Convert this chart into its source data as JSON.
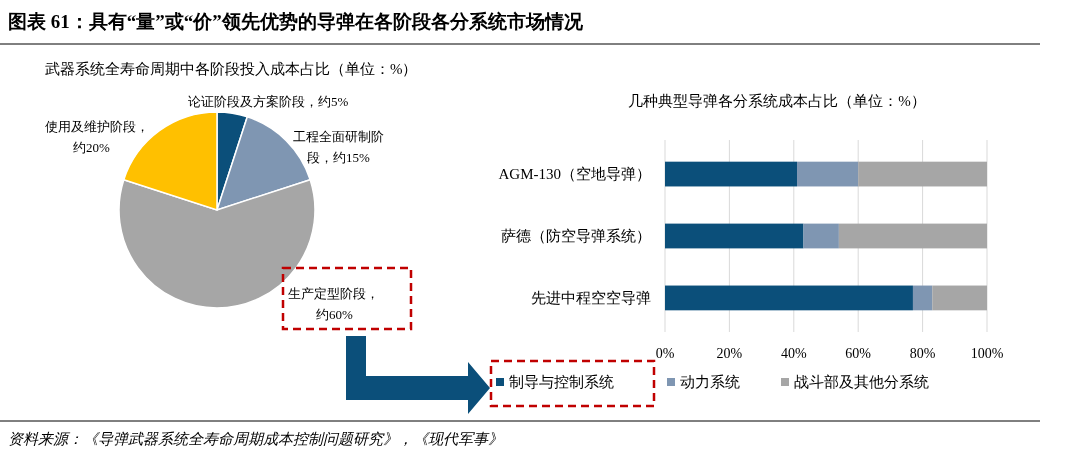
{
  "chart_data": [
    {
      "type": "pie",
      "title": "武器系统全寿命周期中各阶段投入成本占比（单位：%）",
      "categories": [
        "论证阶段及方案阶段，约5%",
        "工程全面研制阶段，约15%",
        "生产定型阶段，约60%",
        "使用及维护阶段，约20%"
      ],
      "values": [
        5,
        15,
        60,
        20
      ],
      "colors": [
        "#0b4f7a",
        "#7f96b2",
        "#a6a6a6",
        "#ffc000"
      ],
      "annotations": [
        "图表 61：具有“量”或“价”领先优势的导弹在各阶段各分系统市场情况",
        "资料来源：《导弹武器系统全寿命周期成本控制问题研究》，《现代军事》"
      ]
    },
    {
      "type": "bar",
      "orientation": "horizontal",
      "stacked": true,
      "title": "几种典型导弹各分系统成本占比（单位：%）",
      "categories": [
        "AGM-130（空地导弹）",
        "萨德（防空导弹系统）",
        "先进中程空空导弹"
      ],
      "series": [
        {
          "name": "制导与控制系统",
          "color": "#0b4f7a",
          "values": [
            41,
            43,
            77
          ]
        },
        {
          "name": "动力系统",
          "color": "#7f96b2",
          "values": [
            19,
            11,
            6
          ]
        },
        {
          "name": "战斗部及其他分系统",
          "color": "#a6a6a6",
          "values": [
            40,
            46,
            17
          ]
        }
      ],
      "xlim": [
        0,
        100
      ],
      "xticks": [
        {
          "value": 0,
          "label": "0%"
        },
        {
          "value": 20,
          "label": "20%"
        },
        {
          "value": 40,
          "label": "40%"
        },
        {
          "value": 60,
          "label": "60%"
        },
        {
          "value": 80,
          "label": "80%"
        },
        {
          "value": 100,
          "label": "100%"
        }
      ],
      "grid": "x",
      "legend": "bottom"
    }
  ]
}
